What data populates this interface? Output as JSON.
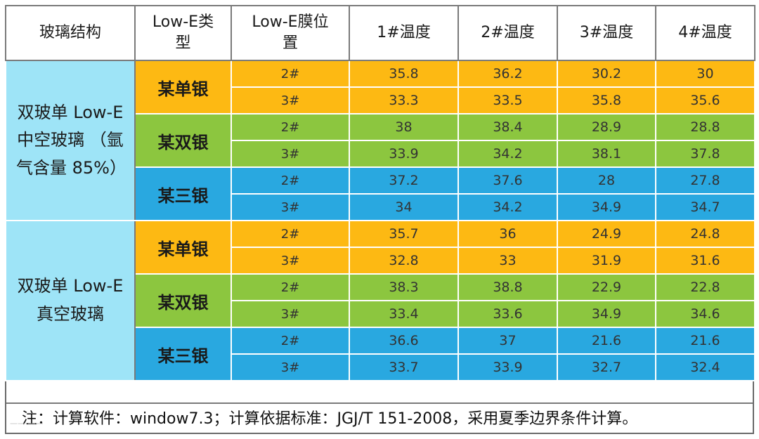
{
  "header": {
    "col_structure": "玻璃结构",
    "col_type": "Low-E类型",
    "col_position": "Low-E膜位置",
    "col_t1": "1#温度",
    "col_t2": "2#温度",
    "col_t3": "3#温度",
    "col_t4": "4#温度"
  },
  "groups": [
    {
      "structure": "双玻单 Low-E 中空玻璃 （氩气含量 85%）",
      "types": [
        {
          "name": "某单银",
          "color": "#fdb913",
          "rows": [
            {
              "pos": "2#",
              "t1": "35.8",
              "t2": "36.2",
              "t3": "30.2",
              "t4": "30"
            },
            {
              "pos": "3#",
              "t1": "33.3",
              "t2": "33.5",
              "t3": "35.8",
              "t4": "35.6"
            }
          ]
        },
        {
          "name": "某双银",
          "color": "#8cc63f",
          "rows": [
            {
              "pos": "2#",
              "t1": "38",
              "t2": "38.4",
              "t3": "28.9",
              "t4": "28.8"
            },
            {
              "pos": "3#",
              "t1": "33.9",
              "t2": "34.2",
              "t3": "38.1",
              "t4": "37.8"
            }
          ]
        },
        {
          "name": "某三银",
          "color": "#29a8e0",
          "rows": [
            {
              "pos": "2#",
              "t1": "37.2",
              "t2": "37.6",
              "t3": "28",
              "t4": "27.8"
            },
            {
              "pos": "3#",
              "t1": "34",
              "t2": "34.2",
              "t3": "34.9",
              "t4": "34.7"
            }
          ]
        }
      ]
    },
    {
      "structure": "双玻单 Low-E 真空玻璃",
      "types": [
        {
          "name": "某单银",
          "color": "#fdb913",
          "rows": [
            {
              "pos": "2#",
              "t1": "35.7",
              "t2": "36",
              "t3": "24.9",
              "t4": "24.8"
            },
            {
              "pos": "3#",
              "t1": "32.8",
              "t2": "33",
              "t3": "31.9",
              "t4": "31.6"
            }
          ]
        },
        {
          "name": "某双银",
          "color": "#8cc63f",
          "rows": [
            {
              "pos": "2#",
              "t1": "38.3",
              "t2": "38.8",
              "t3": "22.9",
              "t4": "22.8"
            },
            {
              "pos": "3#",
              "t1": "33.4",
              "t2": "33.6",
              "t3": "34.9",
              "t4": "34.6"
            }
          ]
        },
        {
          "name": "某三银",
          "color": "#29a8e0",
          "rows": [
            {
              "pos": "2#",
              "t1": "36.6",
              "t2": "37",
              "t3": "21.6",
              "t4": "21.6"
            },
            {
              "pos": "3#",
              "t1": "33.7",
              "t2": "33.9",
              "t3": "32.7",
              "t4": "32.4"
            }
          ]
        }
      ]
    }
  ],
  "footnote": "注：计算软件：window7.3；计算依据标准：JGJ/T 151-2008，采用夏季边界条件计算。",
  "colors": {
    "struct_bg": "#9ee4f7",
    "orange": "#fdb913",
    "green": "#8cc63f",
    "blue": "#29a8e0"
  }
}
